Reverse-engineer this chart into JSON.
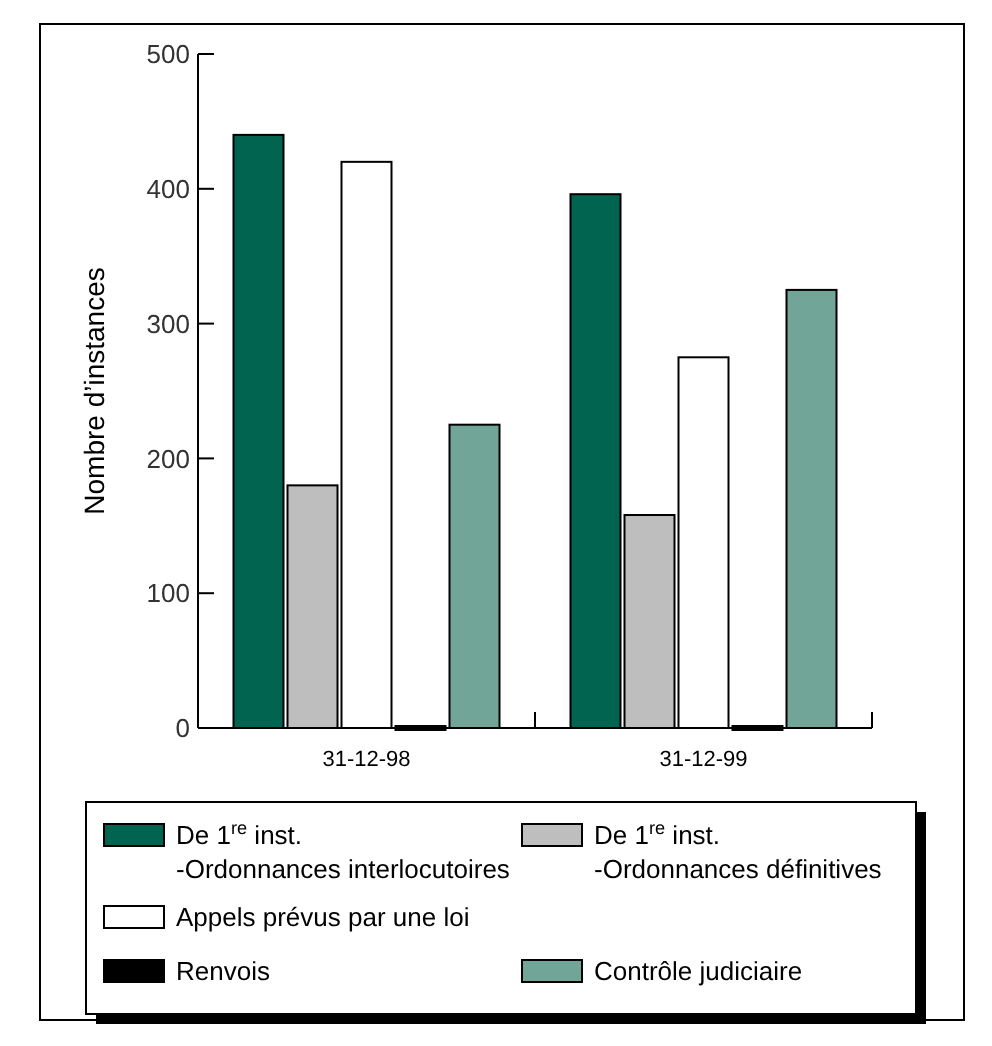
{
  "chart_data": {
    "type": "bar",
    "ylabel": "Nombre d’instances",
    "categories": [
      "31-12-98",
      "31-12-99"
    ],
    "series": [
      {
        "name": "De 1$^{re}$ inst.\n-Ordonnances interlocutoires",
        "color": "#006450",
        "values": [
          440,
          396
        ]
      },
      {
        "name": "De 1$^{re}$ inst.\n-Ordonnances définitives",
        "color": "#bebebe",
        "values": [
          180,
          158
        ]
      },
      {
        "name": "Appels prévus par une loi",
        "color": "#ffffff",
        "values": [
          420,
          275
        ]
      },
      {
        "name": "Renvois",
        "color": "#000000",
        "values": [
          0,
          0
        ]
      },
      {
        "name": "Contrôle judiciaire",
        "color": "#70a597",
        "values": [
          225,
          325
        ]
      }
    ],
    "ylim": [
      0,
      500
    ],
    "yticks": [
      0,
      100,
      200,
      300,
      400,
      500
    ],
    "grid": false,
    "legend": "bottom"
  }
}
